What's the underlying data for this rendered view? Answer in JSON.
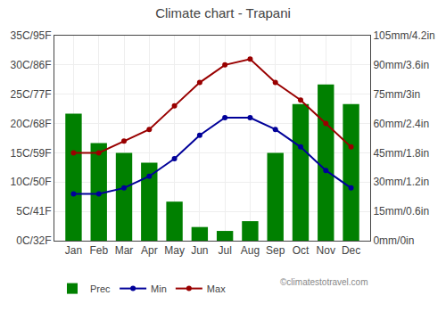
{
  "chart_data": {
    "type": "bar",
    "title": "Climate chart - Trapani",
    "categories": [
      "Jan",
      "Feb",
      "Mar",
      "Apr",
      "May",
      "Jun",
      "Jul",
      "Aug",
      "Sep",
      "Oct",
      "Nov",
      "Dec"
    ],
    "series": [
      {
        "name": "Prec",
        "type": "bar",
        "axis": "y2",
        "color": "#008000",
        "values": [
          65,
          50,
          45,
          40,
          20,
          7,
          5,
          10,
          45,
          70,
          80,
          70
        ]
      },
      {
        "name": "Min",
        "type": "line",
        "marker": "circle",
        "color": "#000099",
        "values": [
          8,
          8,
          9,
          11,
          14,
          18,
          21,
          21,
          19,
          16,
          12,
          9
        ]
      },
      {
        "name": "Max",
        "type": "line",
        "marker": "circle",
        "color": "#990000",
        "values": [
          15,
          15,
          17,
          19,
          23,
          27,
          30,
          31,
          27,
          24,
          20,
          16
        ]
      }
    ],
    "ylim": [
      0,
      35
    ],
    "yticks": [
      {
        "value": 0,
        "label": "0C/32F"
      },
      {
        "value": 5,
        "label": "5C/41F"
      },
      {
        "value": 10,
        "label": "10C/50F"
      },
      {
        "value": 15,
        "label": "15C/59F"
      },
      {
        "value": 20,
        "label": "20C/68F"
      },
      {
        "value": 25,
        "label": "25C/77F"
      },
      {
        "value": 30,
        "label": "30C/86F"
      },
      {
        "value": 35,
        "label": "35C/95F"
      }
    ],
    "y2lim": [
      0,
      105
    ],
    "y2ticks": [
      {
        "value": 0,
        "label": "0mm/0in"
      },
      {
        "value": 15,
        "label": "15mm/0.6in"
      },
      {
        "value": 30,
        "label": "30mm/1.2in"
      },
      {
        "value": 45,
        "label": "45mm/1.8in"
      },
      {
        "value": 60,
        "label": "60mm/2.4in"
      },
      {
        "value": 75,
        "label": "75mm/3in"
      },
      {
        "value": 90,
        "label": "90mm/3.6in"
      },
      {
        "value": 105,
        "label": "105mm/4.2in"
      }
    ],
    "grid": true,
    "legend": "lower left",
    "annotations": [
      "©climatestotravel.com"
    ]
  }
}
